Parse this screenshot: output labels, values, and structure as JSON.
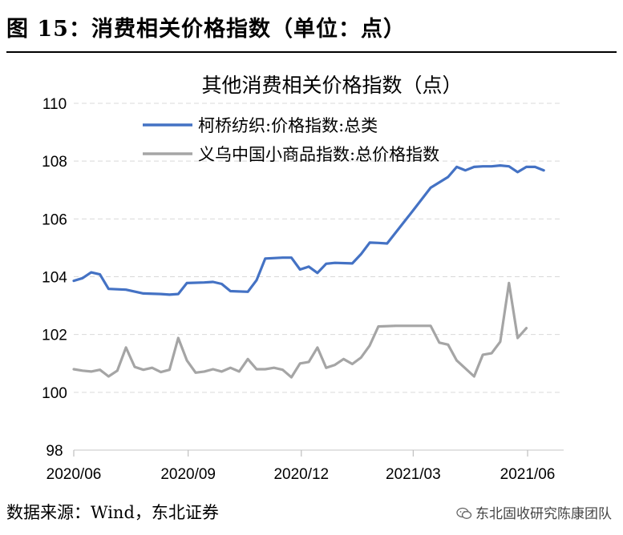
{
  "figure": {
    "title": "图  15：消费相关价格指数（单位：点）",
    "source": "数据来源：Wind，东北证券",
    "watermark": "东北固收研究陈康团队",
    "watermark_icon": "wechat-icon"
  },
  "chart_data": {
    "type": "line",
    "title": "其他消费相关价格指数（点）",
    "xlabel": "",
    "ylabel": "",
    "ylim": [
      98,
      110
    ],
    "yticks": [
      98,
      100,
      102,
      104,
      106,
      108,
      110
    ],
    "xlim": [
      "2020-06-01",
      "2021-06-30"
    ],
    "xtick_labels": [
      "2020/06",
      "2020/09",
      "2020/12",
      "2021/03",
      "2021/06"
    ],
    "xtick_dates": [
      "2020-06-01",
      "2020-09-01",
      "2020-12-01",
      "2021-03-01",
      "2021-06-01"
    ],
    "grid": "horizontal dashed",
    "legend_position": "top-left",
    "series": [
      {
        "name": "柯桥纺织:价格指数:总类",
        "color": "#4472C4",
        "points": [
          [
            "2020-06-01",
            103.86
          ],
          [
            "2020-06-08",
            103.95
          ],
          [
            "2020-06-15",
            104.15
          ],
          [
            "2020-06-22",
            104.08
          ],
          [
            "2020-06-29",
            103.58
          ],
          [
            "2020-07-13",
            103.55
          ],
          [
            "2020-07-27",
            103.42
          ],
          [
            "2020-08-10",
            103.4
          ],
          [
            "2020-08-17",
            103.38
          ],
          [
            "2020-08-24",
            103.4
          ],
          [
            "2020-08-31",
            103.78
          ],
          [
            "2020-09-14",
            103.8
          ],
          [
            "2020-09-21",
            103.82
          ],
          [
            "2020-09-28",
            103.75
          ],
          [
            "2020-10-05",
            103.5
          ],
          [
            "2020-10-19",
            103.48
          ],
          [
            "2020-10-26",
            103.88
          ],
          [
            "2020-11-02",
            104.63
          ],
          [
            "2020-11-16",
            104.66
          ],
          [
            "2020-11-23",
            104.66
          ],
          [
            "2020-11-30",
            104.25
          ],
          [
            "2020-12-07",
            104.35
          ],
          [
            "2020-12-14",
            104.13
          ],
          [
            "2020-12-21",
            104.45
          ],
          [
            "2020-12-28",
            104.48
          ],
          [
            "2021-01-11",
            104.46
          ],
          [
            "2021-01-18",
            104.78
          ],
          [
            "2021-01-25",
            105.18
          ],
          [
            "2021-02-01",
            105.17
          ],
          [
            "2021-02-08",
            105.15
          ],
          [
            "2021-03-01",
            106.3
          ],
          [
            "2021-03-15",
            107.08
          ],
          [
            "2021-03-29",
            107.45
          ],
          [
            "2021-04-05",
            107.8
          ],
          [
            "2021-04-12",
            107.68
          ],
          [
            "2021-04-19",
            107.8
          ],
          [
            "2021-04-26",
            107.82
          ],
          [
            "2021-05-03",
            107.82
          ],
          [
            "2021-05-10",
            107.85
          ],
          [
            "2021-05-17",
            107.82
          ],
          [
            "2021-05-24",
            107.62
          ],
          [
            "2021-05-31",
            107.8
          ],
          [
            "2021-06-07",
            107.8
          ],
          [
            "2021-06-14",
            107.68
          ]
        ]
      },
      {
        "name": "义乌中国小商品指数:总价格指数",
        "color": "#A5A5A5",
        "points": [
          [
            "2020-06-01",
            100.8
          ],
          [
            "2020-06-08",
            100.75
          ],
          [
            "2020-06-15",
            100.72
          ],
          [
            "2020-06-22",
            100.78
          ],
          [
            "2020-06-29",
            100.55
          ],
          [
            "2020-07-06",
            100.75
          ],
          [
            "2020-07-13",
            101.55
          ],
          [
            "2020-07-20",
            100.88
          ],
          [
            "2020-07-27",
            100.78
          ],
          [
            "2020-08-03",
            100.85
          ],
          [
            "2020-08-10",
            100.7
          ],
          [
            "2020-08-17",
            100.78
          ],
          [
            "2020-08-24",
            101.88
          ],
          [
            "2020-08-31",
            101.1
          ],
          [
            "2020-09-07",
            100.68
          ],
          [
            "2020-09-14",
            100.72
          ],
          [
            "2020-09-21",
            100.8
          ],
          [
            "2020-09-28",
            100.72
          ],
          [
            "2020-10-05",
            100.85
          ],
          [
            "2020-10-12",
            100.72
          ],
          [
            "2020-10-19",
            101.15
          ],
          [
            "2020-10-26",
            100.8
          ],
          [
            "2020-11-02",
            100.8
          ],
          [
            "2020-11-09",
            100.85
          ],
          [
            "2020-11-16",
            100.78
          ],
          [
            "2020-11-23",
            100.52
          ],
          [
            "2020-11-30",
            101.0
          ],
          [
            "2020-12-07",
            101.05
          ],
          [
            "2020-12-14",
            101.55
          ],
          [
            "2020-12-21",
            100.85
          ],
          [
            "2020-12-28",
            100.95
          ],
          [
            "2021-01-04",
            101.15
          ],
          [
            "2021-01-11",
            100.98
          ],
          [
            "2021-01-18",
            101.2
          ],
          [
            "2021-01-25",
            101.62
          ],
          [
            "2021-02-01",
            102.28
          ],
          [
            "2021-02-15",
            102.3
          ],
          [
            "2021-03-01",
            102.3
          ],
          [
            "2021-03-15",
            102.3
          ],
          [
            "2021-03-22",
            101.72
          ],
          [
            "2021-03-29",
            101.65
          ],
          [
            "2021-04-05",
            101.1
          ],
          [
            "2021-04-19",
            100.55
          ],
          [
            "2021-04-26",
            101.3
          ],
          [
            "2021-05-03",
            101.35
          ],
          [
            "2021-05-10",
            101.75
          ],
          [
            "2021-05-17",
            103.78
          ],
          [
            "2021-05-24",
            101.88
          ],
          [
            "2021-05-31",
            102.22
          ]
        ]
      }
    ]
  }
}
